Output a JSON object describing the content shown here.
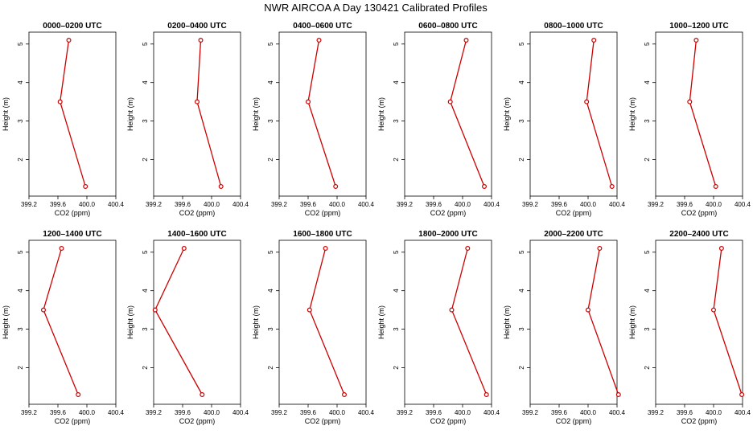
{
  "figure": {
    "title": "NWR AIRCOA A  Day 130421  Calibrated Profiles"
  },
  "chart_data": {
    "type": "line",
    "title": "NWR AIRCOA A  Day 130421  Calibrated Profiles",
    "xlabel": "CO2 (ppm)",
    "ylabel": "Height (m)",
    "x_ticks": [
      "399.2",
      "399.6",
      "400.0",
      "400.4"
    ],
    "y_ticks": [
      "2",
      "3",
      "4",
      "5"
    ],
    "xlim": [
      399.2,
      400.4
    ],
    "ylim": [
      1.3,
      5.1
    ],
    "heights": [
      5.1,
      3.5,
      1.3
    ],
    "line_color": "#cc0000",
    "panels": [
      {
        "title": "0000–0200 UTC",
        "x": [
          399.75,
          399.63,
          399.98
        ]
      },
      {
        "title": "0200–0400 UTC",
        "x": [
          399.85,
          399.8,
          400.13
        ]
      },
      {
        "title": "0400–0600 UTC",
        "x": [
          399.75,
          399.6,
          399.98
        ]
      },
      {
        "title": "0600–0800 UTC",
        "x": [
          400.05,
          399.83,
          400.3
        ]
      },
      {
        "title": "0800–1000 UTC",
        "x": [
          400.08,
          399.98,
          400.33
        ]
      },
      {
        "title": "1000–1200 UTC",
        "x": [
          399.76,
          399.67,
          400.03
        ]
      },
      {
        "title": "1200–1400 UTC",
        "x": [
          399.65,
          399.4,
          399.88
        ]
      },
      {
        "title": "1400–1600 UTC",
        "x": [
          399.62,
          399.22,
          399.87
        ]
      },
      {
        "title": "1600–1800 UTC",
        "x": [
          399.84,
          399.62,
          400.1
        ]
      },
      {
        "title": "1800–2000 UTC",
        "x": [
          400.07,
          399.85,
          400.33
        ]
      },
      {
        "title": "2000–2200 UTC",
        "x": [
          400.16,
          400.0,
          400.42
        ]
      },
      {
        "title": "2200–2400 UTC",
        "x": [
          400.11,
          400.0,
          400.39
        ]
      }
    ]
  }
}
